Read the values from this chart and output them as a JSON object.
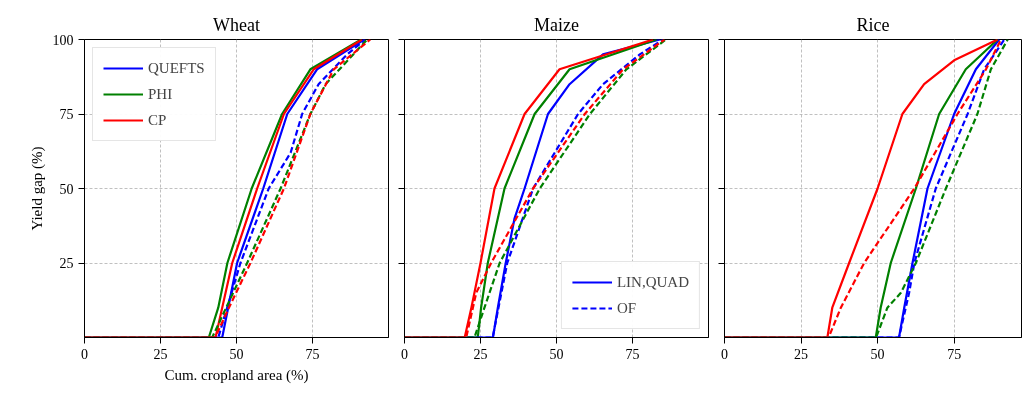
{
  "chart_data": [
    {
      "type": "line",
      "title": "Wheat",
      "xlabel": "Cum. cropland area (%)",
      "ylabel": "Yield gap (%)",
      "xlim": [
        0,
        100
      ],
      "xticks": [
        0,
        25,
        50,
        75
      ],
      "ylim": [
        0,
        100
      ],
      "yticks": [
        25,
        50,
        75,
        100
      ],
      "grid": true,
      "legend": "top left",
      "line_style": "solid",
      "series": [
        {
          "name": "QUEFTS",
          "color": "#0000ff",
          "x": [
            0,
            45.3,
            50.2,
            58.8,
            66.7,
            76.5,
            92
          ],
          "values": [
            0,
            0,
            25,
            50,
            75,
            90,
            100
          ]
        },
        {
          "name": "PHI",
          "color": "#008000",
          "x": [
            0,
            40.9,
            44,
            47,
            55,
            65,
            74.3,
            91
          ],
          "values": [
            0,
            0,
            10,
            25,
            50,
            75,
            90,
            100
          ]
        },
        {
          "name": "CP",
          "color": "#ff0000",
          "x": [
            0,
            43.1,
            48.6,
            56.8,
            65.6,
            75.4,
            91.3
          ],
          "values": [
            0,
            0,
            25,
            50,
            75,
            90,
            100
          ]
        },
        {
          "color": "#0000ff",
          "line_style": "dashed",
          "x": [
            0,
            44,
            51.3,
            60.6,
            67.8,
            71.6,
            77,
            86.4,
            92.4
          ],
          "values": [
            0,
            0,
            25,
            50,
            62,
            75,
            85,
            95,
            100
          ]
        },
        {
          "color": "#008000",
          "line_style": "dashed",
          "x": [
            0,
            42,
            53.5,
            64.5,
            74.3,
            79.3,
            93
          ],
          "values": [
            0,
            0,
            25,
            50,
            75,
            85,
            100
          ]
        },
        {
          "color": "#ff0000",
          "line_style": "dashed",
          "x": [
            0,
            43,
            47.5,
            54.6,
            65.6,
            74.3,
            82,
            94
          ],
          "values": [
            0,
            0,
            10,
            25,
            50,
            75,
            90,
            100
          ]
        }
      ]
    },
    {
      "type": "line",
      "title": "Maize",
      "xlim": [
        0,
        100
      ],
      "xticks": [
        0,
        25,
        50,
        75
      ],
      "ylim": [
        0,
        100
      ],
      "yticks": [
        25,
        50,
        75,
        100
      ],
      "grid": true,
      "legend": "bottom right",
      "tick_labels": "x",
      "line_style": "solid",
      "series": [
        {
          "name": "LIN,QUAD",
          "color": "#0000ff",
          "x": [
            0,
            29.1,
            30.7,
            33.3,
            36.2,
            39.5,
            47.2,
            54.3,
            65.3,
            84
          ],
          "values": [
            0,
            0,
            10,
            25,
            40,
            50,
            75,
            85,
            95,
            100
          ]
        },
        {
          "color": "#008000",
          "x": [
            0,
            24.1,
            25.2,
            27.4,
            32.9,
            42.8,
            54.3,
            82.9
          ],
          "values": [
            0,
            0,
            10,
            25,
            50,
            75,
            90,
            100
          ]
        },
        {
          "color": "#ff0000",
          "x": [
            0,
            19.8,
            22,
            25,
            29.6,
            39.5,
            51,
            81.8
          ],
          "values": [
            0,
            0,
            10,
            25,
            50,
            75,
            90,
            100
          ]
        },
        {
          "name": "OF",
          "color": "#0000ff",
          "line_style": "dashed",
          "x": [
            0,
            29,
            33.8,
            42.3,
            57.1,
            65.3,
            77.4,
            85
          ],
          "values": [
            0,
            0,
            25,
            50,
            75,
            85,
            95,
            100
          ]
        },
        {
          "color": "#008000",
          "line_style": "dashed",
          "x": [
            0,
            23,
            26.3,
            31.3,
            44.5,
            61,
            73,
            86
          ],
          "values": [
            0,
            0,
            10,
            25,
            50,
            75,
            90,
            100
          ]
        },
        {
          "color": "#ff0000",
          "line_style": "dashed",
          "x": [
            0,
            20.3,
            23.6,
            28.5,
            42.3,
            59.3,
            71.9,
            85.5
          ],
          "values": [
            0,
            0,
            15,
            25,
            50,
            75,
            90,
            100
          ]
        }
      ]
    },
    {
      "type": "line",
      "title": "Rice",
      "xlim": [
        0,
        97
      ],
      "xticks": [
        0,
        25,
        50,
        75
      ],
      "ylim": [
        0,
        100
      ],
      "yticks": [
        25,
        50,
        75,
        100
      ],
      "grid": true,
      "tick_labels": "x",
      "line_style": "solid",
      "series": [
        {
          "color": "#0000ff",
          "x": [
            0,
            57,
            58.7,
            61.4,
            66.3,
            75,
            82.1,
            89.7
          ],
          "values": [
            0,
            0,
            10,
            25,
            50,
            75,
            90,
            100
          ]
        },
        {
          "color": "#008000",
          "x": [
            0,
            49.4,
            51,
            54.3,
            62.5,
            70.1,
            78.8,
            89.2
          ],
          "values": [
            0,
            0,
            10,
            25,
            50,
            75,
            90,
            100
          ]
        },
        {
          "color": "#ff0000",
          "x": [
            0,
            33.6,
            35.2,
            40.7,
            50,
            58.1,
            65.2,
            75,
            89.2
          ],
          "values": [
            0,
            0,
            10,
            25,
            50,
            75,
            85,
            93,
            100
          ]
        },
        {
          "color": "#0000ff",
          "line_style": "dashed",
          "x": [
            0,
            57,
            60.3,
            62,
            69,
            79.4,
            84.8,
            91.4
          ],
          "values": [
            0,
            0,
            15,
            25,
            50,
            75,
            90,
            100
          ]
        },
        {
          "color": "#008000",
          "line_style": "dashed",
          "x": [
            0,
            49.5,
            53.2,
            57.6,
            62.5,
            72.3,
            82.6,
            87,
            92.5
          ],
          "values": [
            0,
            0,
            10,
            15,
            25,
            50,
            75,
            90,
            100
          ]
        },
        {
          "color": "#ff0000",
          "line_style": "dashed",
          "x": [
            0,
            34,
            38,
            45.6,
            62,
            76.1,
            85.4,
            90.3
          ],
          "values": [
            0,
            0,
            10,
            25,
            50,
            75,
            90,
            100
          ]
        }
      ]
    }
  ]
}
